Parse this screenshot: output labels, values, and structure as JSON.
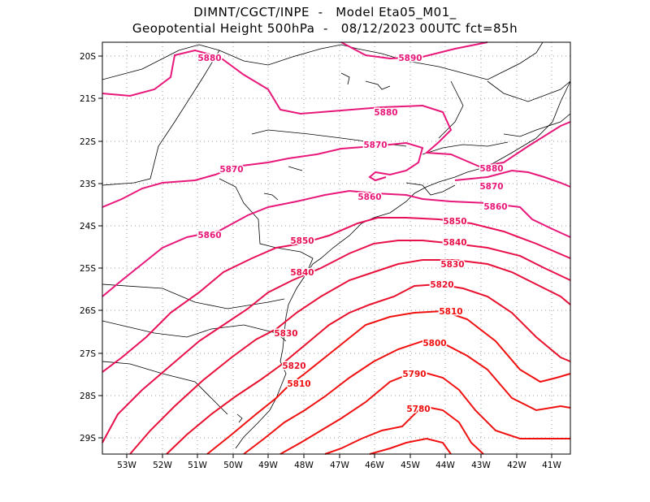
{
  "header": {
    "line1": "DIMNT/CGCT/INPE  -   Model Eta05_M01_",
    "line2": "Geopotential Height 500hPa  -   08/12/2023 00UTC fct=85h"
  },
  "axes": {
    "x_ticks": [
      "53W",
      "52W",
      "51W",
      "50W",
      "49W",
      "48W",
      "47W",
      "46W",
      "45W",
      "44W",
      "43W",
      "42W",
      "41W"
    ],
    "y_ticks": [
      "20S",
      "21S",
      "22S",
      "23S",
      "24S",
      "25S",
      "26S",
      "27S",
      "28S",
      "29S"
    ]
  },
  "contour_labels": [
    {
      "text": "5890",
      "color": "#e8187a"
    },
    {
      "text": "5880",
      "color": "#e8187a"
    },
    {
      "text": "5880",
      "color": "#e8187a"
    },
    {
      "text": "5880",
      "color": "#e8187a"
    },
    {
      "text": "5870",
      "color": "#e8187a"
    },
    {
      "text": "5870",
      "color": "#e8187a"
    },
    {
      "text": "5870",
      "color": "#e8187a"
    },
    {
      "text": "5860",
      "color": "#e8187a"
    },
    {
      "text": "5860",
      "color": "#e8187a"
    },
    {
      "text": "5860",
      "color": "#e8187a"
    },
    {
      "text": "5850",
      "color": "#e8105a"
    },
    {
      "text": "5850",
      "color": "#e8105a"
    },
    {
      "text": "5840",
      "color": "#e8104a"
    },
    {
      "text": "5840",
      "color": "#e8104a"
    },
    {
      "text": "5830",
      "color": "#e8103a"
    },
    {
      "text": "5830",
      "color": "#e8103a"
    },
    {
      "text": "5820",
      "color": "#e8102a"
    },
    {
      "text": "5820",
      "color": "#e8102a"
    },
    {
      "text": "5810",
      "color": "#f01010"
    },
    {
      "text": "5810",
      "color": "#f01010"
    },
    {
      "text": "5800",
      "color": "#f01010"
    },
    {
      "text": "5790",
      "color": "#f01010"
    },
    {
      "text": "5780",
      "color": "#f01010"
    }
  ],
  "colors": {
    "contour_high": "#e8187a",
    "contour_low": "#f01010",
    "coastline": "#000000",
    "grid": "#999999"
  }
}
